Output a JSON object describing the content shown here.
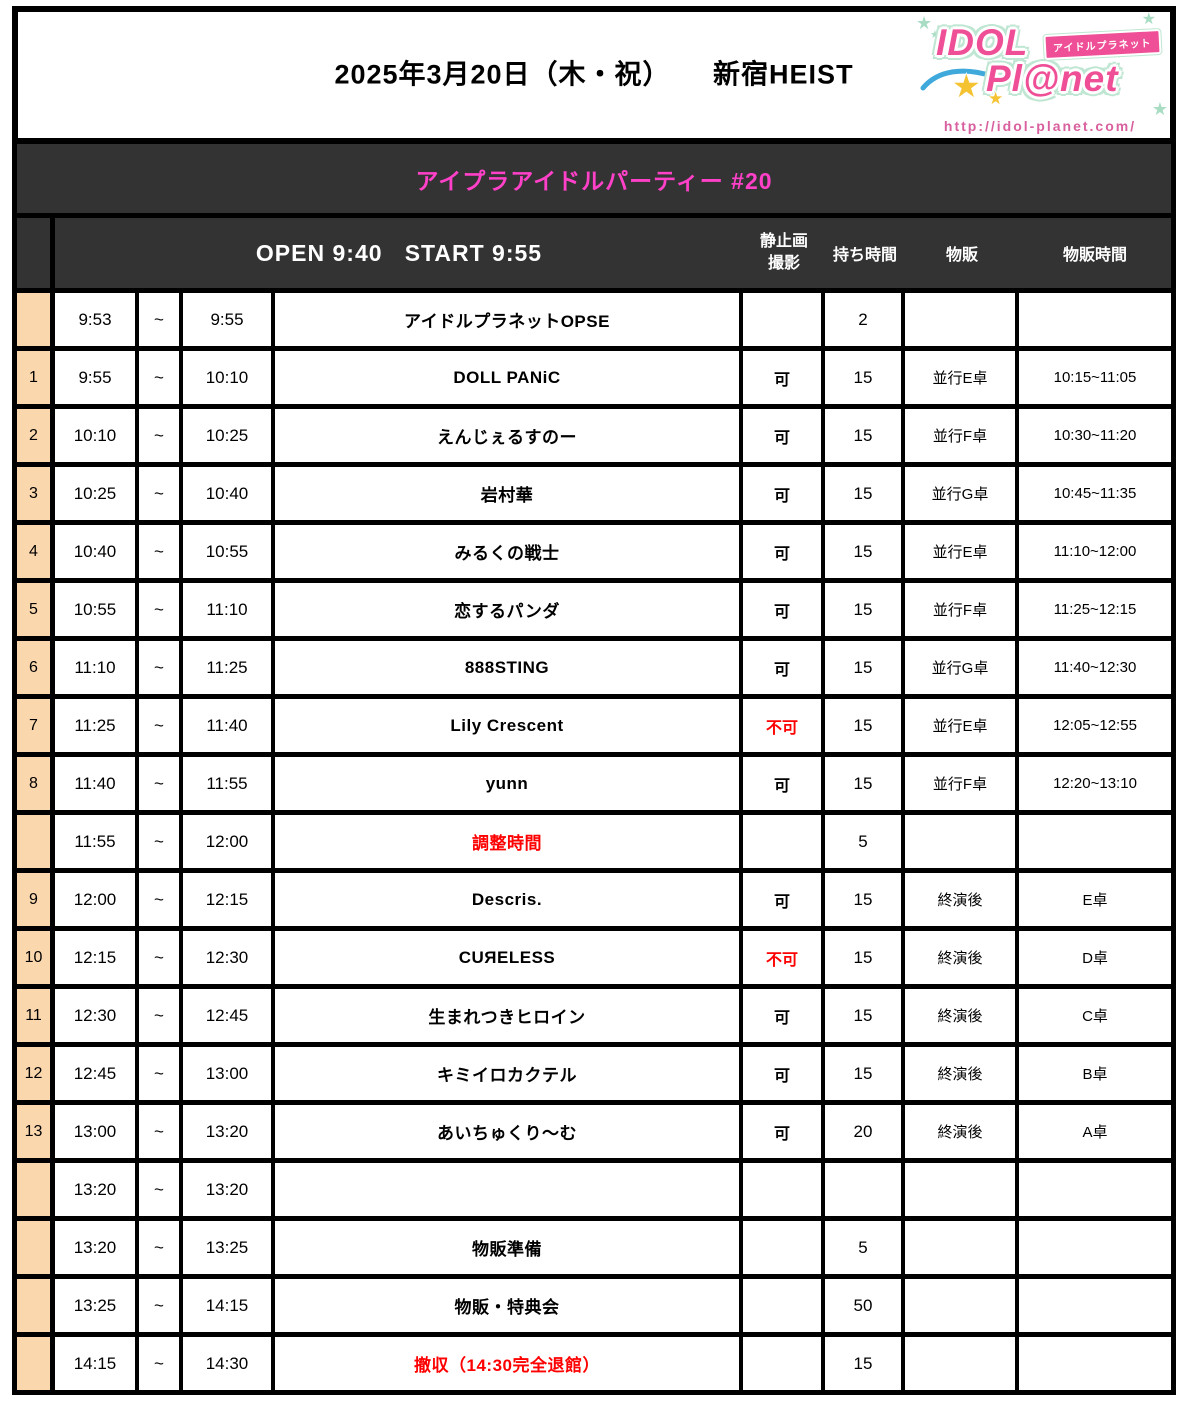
{
  "page": {
    "title": "2025年3月20日（木・祝）　　新宿HEIST"
  },
  "logo": {
    "idol": "IDOL",
    "planet": "Pl@net",
    "ribbon": "アイドルプラネット",
    "url": "http://idol-planet.com/",
    "star": "★"
  },
  "event": {
    "name": "アイプラアイドルパーティー #20"
  },
  "colors": {
    "accent_pink": "#FF40C8",
    "logo_pink": "#EF4F96",
    "url_pink": "#D8609E",
    "star_gold": "#F5C332",
    "star_mint": "#A8DCC3",
    "swoosh_blue": "#3FA9DC",
    "red": "#FF0000",
    "number_column_peach": "#FBD7AE",
    "header_dark": "#333333"
  },
  "table": {
    "open_start": "OPEN 9:40   START 9:55",
    "separator": "~",
    "headers": {
      "photo_line1": "静止画",
      "photo_line2": "撮影",
      "duration": "持ち時間",
      "goods": "物販",
      "goods_time": "物販時間"
    },
    "rows": [
      {
        "num": "",
        "start": "9:53",
        "end": "9:55",
        "name": "アイドルプラネットOPSE",
        "name_red": false,
        "photo": "",
        "photo_red": false,
        "duration": "2",
        "goods": "",
        "goods_time": ""
      },
      {
        "num": "1",
        "start": "9:55",
        "end": "10:10",
        "name": "DOLL PANiC",
        "name_red": false,
        "photo": "可",
        "photo_red": false,
        "duration": "15",
        "goods": "並行E卓",
        "goods_time": "10:15~11:05"
      },
      {
        "num": "2",
        "start": "10:10",
        "end": "10:25",
        "name": "えんじぇるすのー",
        "name_red": false,
        "photo": "可",
        "photo_red": false,
        "duration": "15",
        "goods": "並行F卓",
        "goods_time": "10:30~11:20"
      },
      {
        "num": "3",
        "start": "10:25",
        "end": "10:40",
        "name": "岩村華",
        "name_red": false,
        "photo": "可",
        "photo_red": false,
        "duration": "15",
        "goods": "並行G卓",
        "goods_time": "10:45~11:35"
      },
      {
        "num": "4",
        "start": "10:40",
        "end": "10:55",
        "name": "みるくの戦士",
        "name_red": false,
        "photo": "可",
        "photo_red": false,
        "duration": "15",
        "goods": "並行E卓",
        "goods_time": "11:10~12:00"
      },
      {
        "num": "5",
        "start": "10:55",
        "end": "11:10",
        "name": "恋するパンダ",
        "name_red": false,
        "photo": "可",
        "photo_red": false,
        "duration": "15",
        "goods": "並行F卓",
        "goods_time": "11:25~12:15"
      },
      {
        "num": "6",
        "start": "11:10",
        "end": "11:25",
        "name": "888STING",
        "name_red": false,
        "photo": "可",
        "photo_red": false,
        "duration": "15",
        "goods": "並行G卓",
        "goods_time": "11:40~12:30"
      },
      {
        "num": "7",
        "start": "11:25",
        "end": "11:40",
        "name": "Lily Crescent",
        "name_red": false,
        "photo": "不可",
        "photo_red": true,
        "duration": "15",
        "goods": "並行E卓",
        "goods_time": "12:05~12:55"
      },
      {
        "num": "8",
        "start": "11:40",
        "end": "11:55",
        "name": "yunn",
        "name_red": false,
        "photo": "可",
        "photo_red": false,
        "duration": "15",
        "goods": "並行F卓",
        "goods_time": "12:20~13:10"
      },
      {
        "num": "",
        "start": "11:55",
        "end": "12:00",
        "name": "調整時間",
        "name_red": true,
        "photo": "",
        "photo_red": false,
        "duration": "5",
        "goods": "",
        "goods_time": ""
      },
      {
        "num": "9",
        "start": "12:00",
        "end": "12:15",
        "name": "Descris.",
        "name_red": false,
        "photo": "可",
        "photo_red": false,
        "duration": "15",
        "goods": "終演後",
        "goods_time": "E卓"
      },
      {
        "num": "10",
        "start": "12:15",
        "end": "12:30",
        "name": "CUЯELESS",
        "name_red": false,
        "photo": "不可",
        "photo_red": true,
        "duration": "15",
        "goods": "終演後",
        "goods_time": "D卓"
      },
      {
        "num": "11",
        "start": "12:30",
        "end": "12:45",
        "name": "生まれつきヒロイン",
        "name_red": false,
        "photo": "可",
        "photo_red": false,
        "duration": "15",
        "goods": "終演後",
        "goods_time": "C卓"
      },
      {
        "num": "12",
        "start": "12:45",
        "end": "13:00",
        "name": "キミイロカクテル",
        "name_red": false,
        "photo": "可",
        "photo_red": false,
        "duration": "15",
        "goods": "終演後",
        "goods_time": "B卓"
      },
      {
        "num": "13",
        "start": "13:00",
        "end": "13:20",
        "name": "あいちゅくり～む",
        "name_red": false,
        "photo": "可",
        "photo_red": false,
        "duration": "20",
        "goods": "終演後",
        "goods_time": "A卓"
      },
      {
        "num": "",
        "start": "13:20",
        "end": "13:20",
        "name": "",
        "name_red": false,
        "photo": "",
        "photo_red": false,
        "duration": "",
        "goods": "",
        "goods_time": ""
      },
      {
        "num": "",
        "start": "13:20",
        "end": "13:25",
        "name": "物販準備",
        "name_red": false,
        "photo": "",
        "photo_red": false,
        "duration": "5",
        "goods": "",
        "goods_time": ""
      },
      {
        "num": "",
        "start": "13:25",
        "end": "14:15",
        "name": "物販・特典会",
        "name_red": false,
        "photo": "",
        "photo_red": false,
        "duration": "50",
        "goods": "",
        "goods_time": ""
      },
      {
        "num": "",
        "start": "14:15",
        "end": "14:30",
        "name": "撤収（14:30完全退館）",
        "name_red": true,
        "photo": "",
        "photo_red": false,
        "duration": "15",
        "goods": "",
        "goods_time": ""
      }
    ]
  }
}
